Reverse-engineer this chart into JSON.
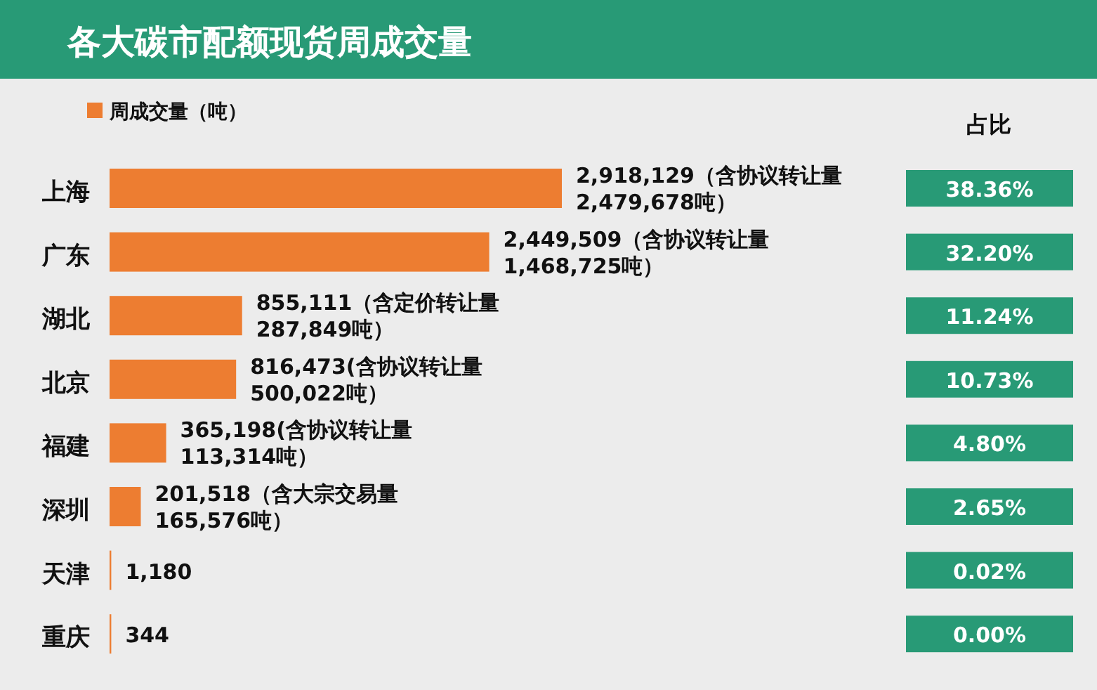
{
  "chart_data": [
    {
      "type": "bar",
      "orientation": "horizontal",
      "title": "各大碳市配额现货周成交量",
      "legend": "top left",
      "categories": [
        "上海",
        "广东",
        "湖北",
        "北京",
        "福建",
        "深圳",
        "天津",
        "重庆"
      ],
      "series": [
        {
          "name": "周成交量（吨）",
          "color": "#ed7d31",
          "values": [
            2918129,
            2449509,
            855111,
            816473,
            365198,
            201518,
            1180,
            344
          ],
          "value_labels": [
            "2,918,129（含协议转让量\n2,479,678吨）",
            "2,449,509（含协议转让量\n1,468,725吨）",
            "855,111（含定价转让量\n287,849吨）",
            "816,473(含协议转让量\n500,022吨）",
            "365,198(含协议转让量\n113,314吨）",
            "201,518（含大宗交易量\n165,576吨）",
            "1,180",
            "344"
          ]
        }
      ]
    },
    {
      "type": "other",
      "title": "占比",
      "color": "#289a76",
      "annotations": [
        "38.36%",
        "32.20%",
        "11.24%",
        "10.73%",
        "4.80%",
        "2.65%",
        "0.02%",
        "0.00%"
      ]
    }
  ]
}
